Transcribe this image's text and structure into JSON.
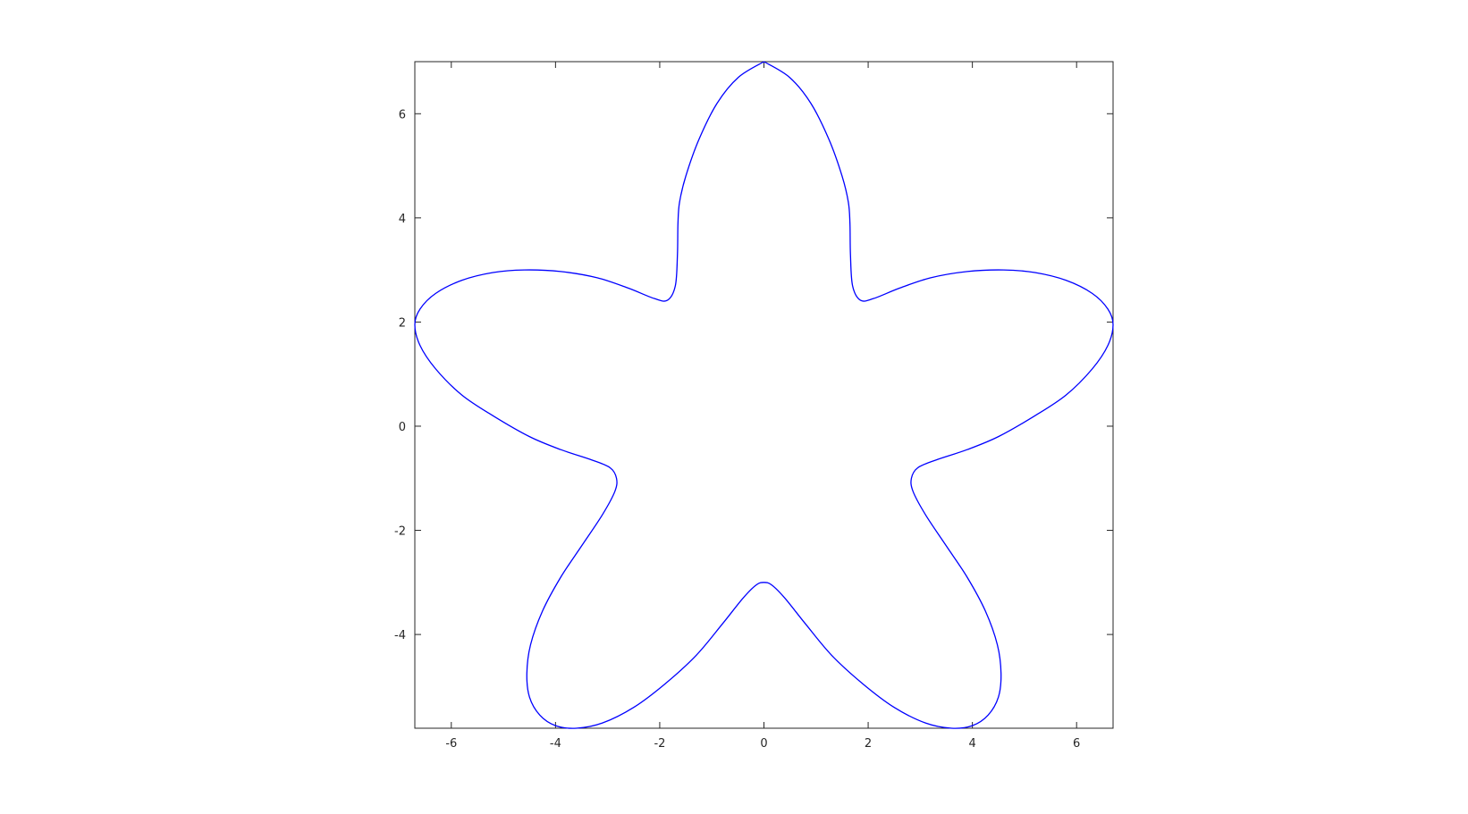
{
  "chart_data": {
    "type": "line",
    "title": "",
    "xlabel": "",
    "ylabel": "",
    "xlim": [
      -6.7,
      6.7
    ],
    "ylim": [
      -5.8,
      7.0
    ],
    "grid": false,
    "x_ticks": [
      -6,
      -4,
      -2,
      0,
      2,
      4,
      6
    ],
    "y_ticks": [
      -4,
      -2,
      0,
      2,
      4,
      6
    ],
    "x_tick_labels": [
      "-6",
      "-4",
      "-2",
      "0",
      "2",
      "4",
      "6"
    ],
    "y_tick_labels": [
      "-4",
      "-2",
      "0",
      "2",
      "4",
      "6"
    ],
    "series": [
      {
        "color": "#0000ff",
        "x": [
          0.0,
          0.49,
          0.9,
          1.25,
          1.5,
          1.62,
          1.65,
          1.66,
          1.7,
          1.85,
          2.1,
          2.6,
          3.2,
          3.9,
          4.6,
          5.2,
          5.8,
          6.3,
          6.6,
          6.7,
          6.6,
          6.3,
          5.8,
          5.2,
          4.5,
          3.9,
          3.3,
          2.95,
          2.83,
          2.86,
          3.1,
          3.5,
          3.9,
          4.25,
          4.48,
          4.55,
          4.5,
          4.3,
          4.0,
          3.6,
          3.1,
          2.5,
          1.9,
          1.3,
          0.8,
          0.4,
          0.15,
          0.0,
          -0.15,
          -0.4,
          -0.8,
          -1.3,
          -1.9,
          -2.5,
          -3.1,
          -3.6,
          -4.0,
          -4.3,
          -4.5,
          -4.55,
          -4.48,
          -4.25,
          -3.9,
          -3.5,
          -3.1,
          -2.86,
          -2.83,
          -2.95,
          -3.3,
          -3.9,
          -4.5,
          -5.2,
          -5.8,
          -6.3,
          -6.6,
          -6.7,
          -6.6,
          -6.3,
          -5.8,
          -5.2,
          -4.6,
          -3.9,
          -3.2,
          -2.6,
          -2.1,
          -1.85,
          -1.7,
          -1.66,
          -1.65,
          -1.62,
          -1.5,
          -1.25,
          -0.9,
          -0.49,
          0.0
        ],
        "y": [
          7.0,
          6.7,
          6.2,
          5.5,
          4.8,
          4.3,
          3.9,
          3.3,
          2.7,
          2.42,
          2.45,
          2.65,
          2.85,
          2.97,
          3.0,
          2.95,
          2.8,
          2.55,
          2.25,
          1.95,
          1.55,
          1.1,
          0.6,
          0.2,
          -0.2,
          -0.45,
          -0.65,
          -0.8,
          -1.0,
          -1.25,
          -1.7,
          -2.3,
          -2.9,
          -3.55,
          -4.2,
          -4.75,
          -5.2,
          -5.55,
          -5.75,
          -5.8,
          -5.7,
          -5.4,
          -4.95,
          -4.4,
          -3.8,
          -3.3,
          -3.05,
          -3.0,
          -3.05,
          -3.3,
          -3.8,
          -4.4,
          -4.95,
          -5.4,
          -5.7,
          -5.8,
          -5.75,
          -5.55,
          -5.2,
          -4.75,
          -4.2,
          -3.55,
          -2.9,
          -2.3,
          -1.7,
          -1.25,
          -1.0,
          -0.8,
          -0.65,
          -0.45,
          -0.2,
          0.2,
          0.6,
          1.1,
          1.55,
          1.95,
          2.25,
          2.55,
          2.8,
          2.95,
          3.0,
          2.97,
          2.85,
          2.65,
          2.45,
          2.42,
          2.7,
          3.3,
          3.9,
          4.3,
          4.8,
          5.5,
          6.2,
          6.7,
          7.0
        ]
      }
    ]
  }
}
